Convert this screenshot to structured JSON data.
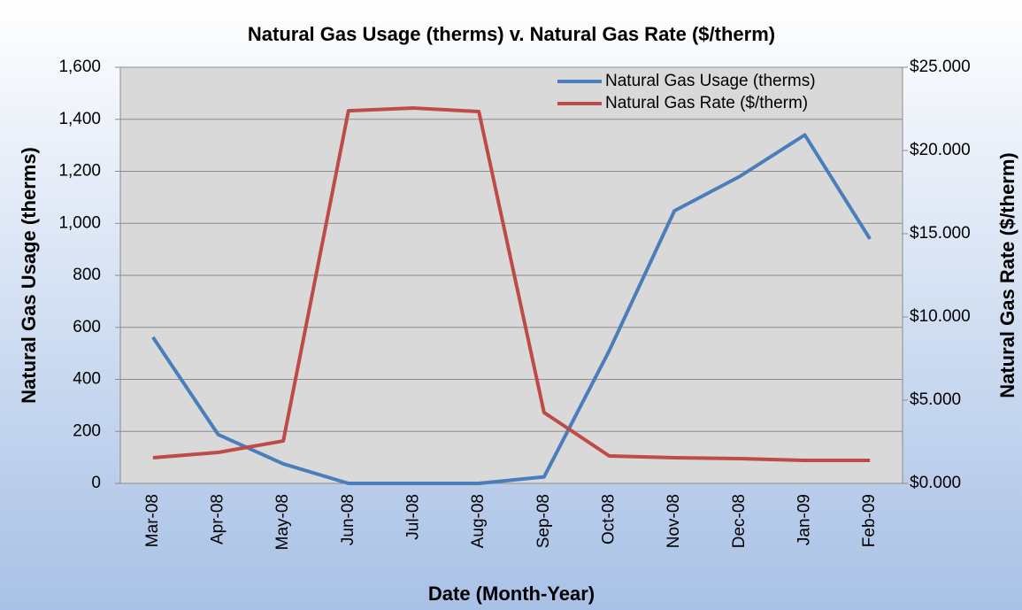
{
  "chart_data": {
    "type": "line",
    "title": "Natural Gas Usage (therms) v. Natural Gas Rate ($/therm)",
    "xlabel": "Date (Month-Year)",
    "ylabel": "Natural Gas Usage (therms)",
    "y2label": "Natural Gas Rate ($/therm)",
    "categories": [
      "Mar-08",
      "Apr-08",
      "May-08",
      "Jun-08",
      "Jul-08",
      "Aug-08",
      "Sep-08",
      "Oct-08",
      "Nov-08",
      "Dec-08",
      "Jan-09",
      "Feb-09"
    ],
    "series": [
      {
        "name": "Natural Gas Usage (therms)",
        "color": "#4a7ebb",
        "values": [
          562,
          188,
          75,
          0,
          0,
          0,
          25,
          510,
          1048,
          1180,
          1340,
          940
        ]
      },
      {
        "name": "Natural Gas Rate ($/therm)",
        "color": "#be4b48",
        "axis": "y2",
        "values": [
          1.54,
          1.86,
          2.55,
          22.39,
          22.55,
          22.34,
          4.26,
          1.65,
          1.54,
          1.49,
          1.38,
          1.38
        ]
      }
    ],
    "ylim": [
      0,
      1600
    ],
    "yticks": [
      0,
      200,
      400,
      600,
      800,
      {
        "value": 1000,
        "label": "1,000"
      },
      {
        "value": 1200,
        "label": "1,200"
      },
      {
        "value": 1400,
        "label": "1,400"
      },
      {
        "value": 1600,
        "label": "1,600"
      }
    ],
    "y2lim": [
      0,
      25
    ],
    "y2ticks": [
      {
        "value": 0,
        "label": "$0.000"
      },
      {
        "value": 5,
        "label": "$5.000"
      },
      {
        "value": 10,
        "label": "$10.000"
      },
      {
        "value": 15,
        "label": "$15.000"
      },
      {
        "value": 20,
        "label": "$20.000"
      },
      {
        "value": 25,
        "label": "$25.000"
      }
    ],
    "grid": true,
    "legend": "upper right"
  }
}
